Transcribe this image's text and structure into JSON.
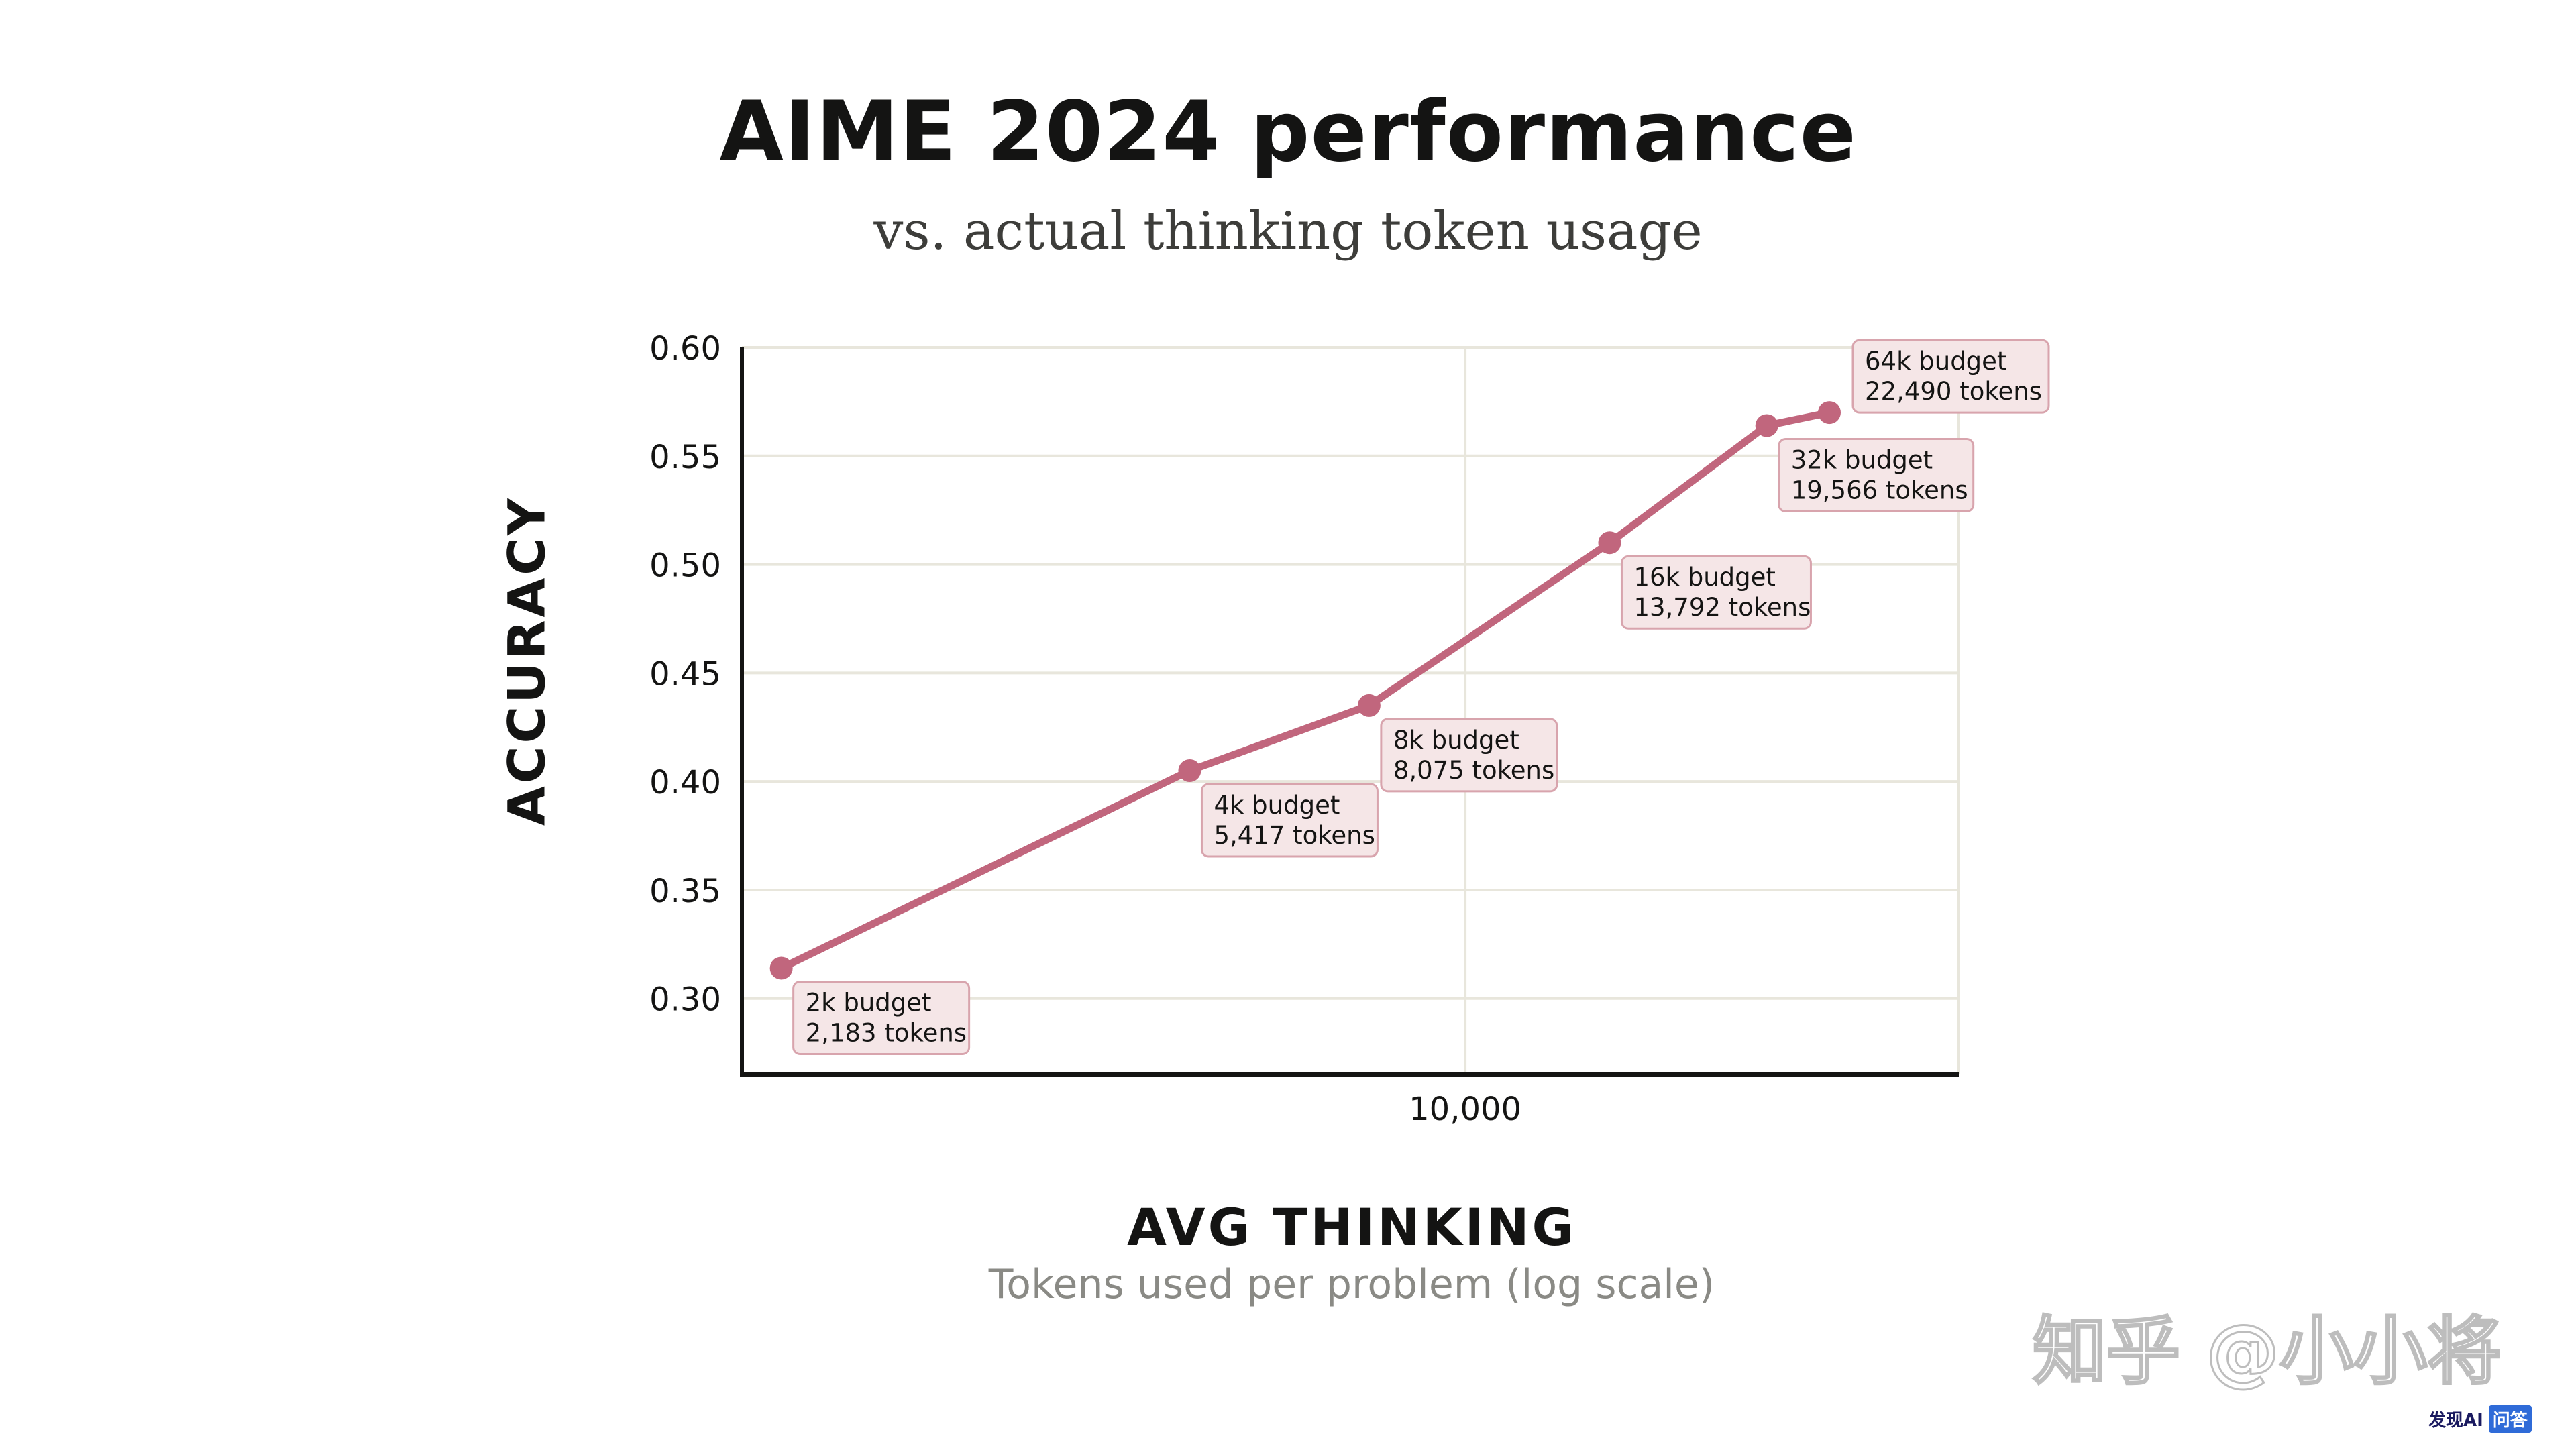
{
  "chart_data": {
    "type": "line",
    "title": "AIME 2024 performance",
    "subtitle": "vs. actual thinking token usage",
    "ylabel": "ACCURACY",
    "xlabel": "AVG THINKING",
    "xlabel_sub": "Tokens used per problem (log scale)",
    "x_scale": "log",
    "xlim": [
      2000,
      30000
    ],
    "ylim": [
      0.265,
      0.6
    ],
    "yticks": [
      0.3,
      0.35,
      0.4,
      0.45,
      0.5,
      0.55,
      0.6
    ],
    "ytick_labels": [
      "0.30",
      "0.35",
      "0.40",
      "0.45",
      "0.50",
      "0.55",
      "0.60"
    ],
    "xticks": [
      10000
    ],
    "xtick_labels": [
      "10,000"
    ],
    "grid": true,
    "line_color": "#c1667d",
    "box_fill": "#f5e6e7",
    "box_border": "#d8a4ad",
    "series": [
      {
        "x": [
          2183,
          5417,
          8075,
          13792,
          19566,
          22490
        ],
        "y": [
          0.314,
          0.405,
          0.435,
          0.51,
          0.564,
          0.57
        ],
        "labels": [
          {
            "budget": "2k budget",
            "tokens": "2,183 tokens"
          },
          {
            "budget": "4k budget",
            "tokens": "5,417 tokens"
          },
          {
            "budget": "8k budget",
            "tokens": "8,075 tokens"
          },
          {
            "budget": "16k budget",
            "tokens": "13,792 tokens"
          },
          {
            "budget": "32k budget",
            "tokens": "19,566 tokens"
          },
          {
            "budget": "64k budget",
            "tokens": "22,490 tokens"
          }
        ]
      }
    ]
  },
  "watermark": "知乎 @小小将",
  "badge": {
    "brand": "发现AI",
    "ask": "问答"
  }
}
